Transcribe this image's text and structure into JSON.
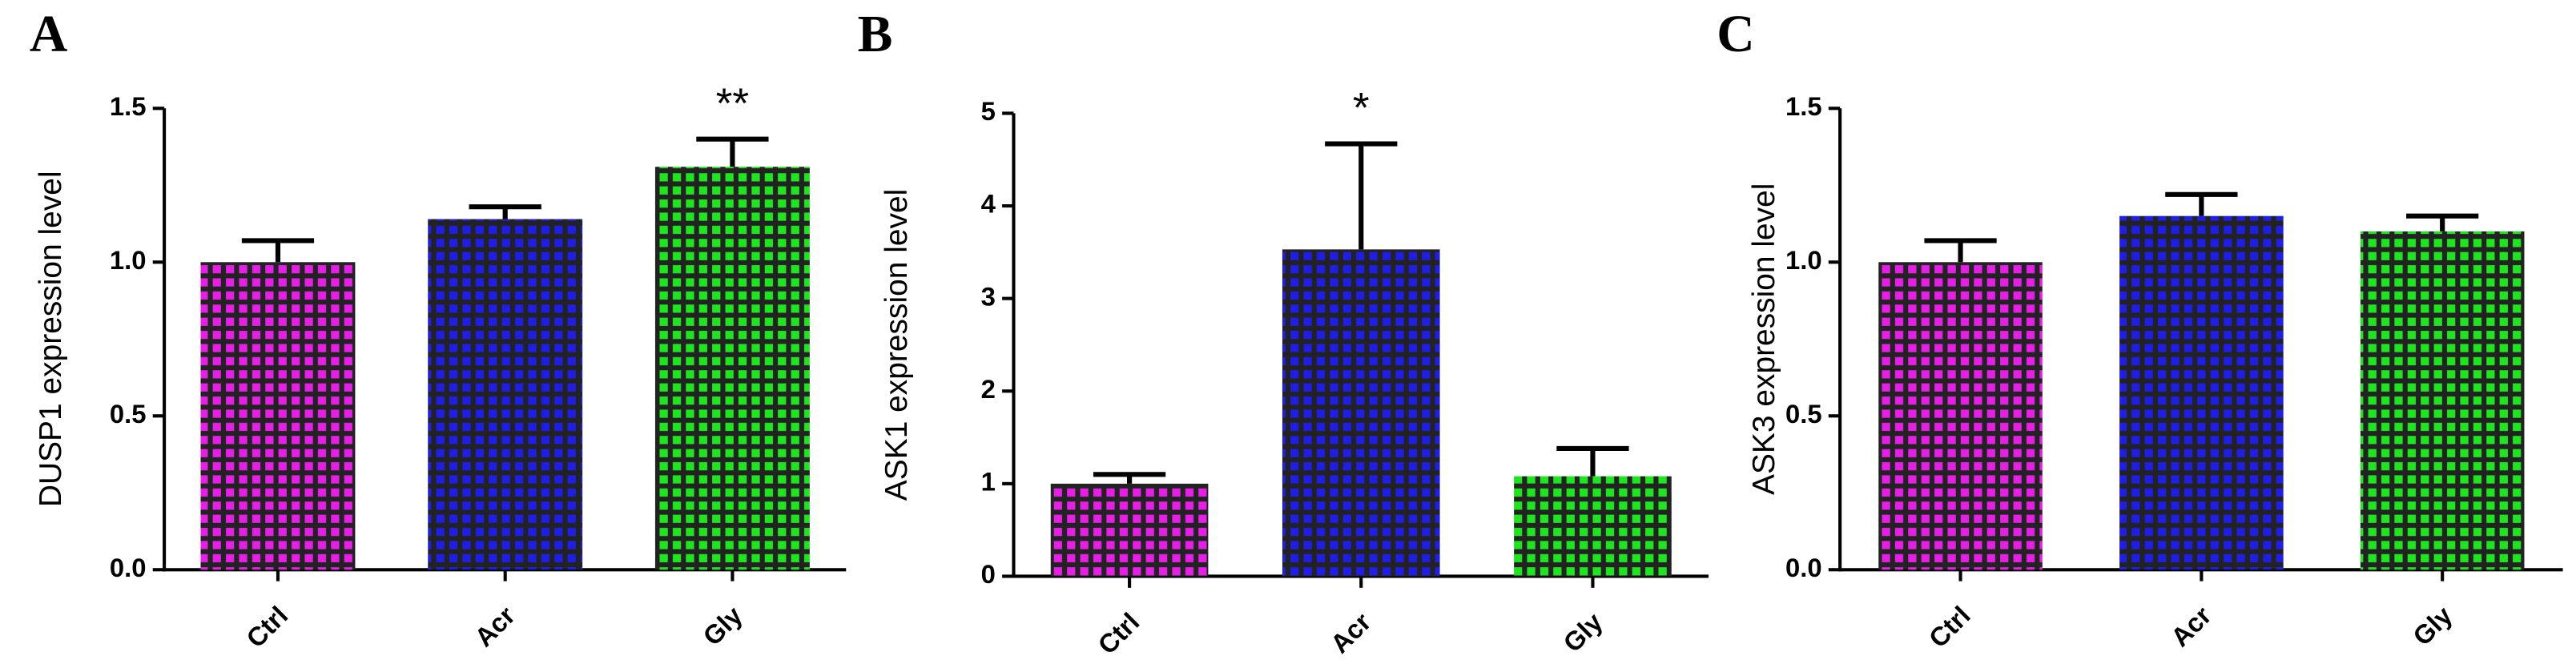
{
  "chart_data": [
    {
      "type": "bar",
      "panel": "A",
      "ylabel": "DUSP1 expression level",
      "categories": [
        "Ctrl",
        "Acr",
        "Gly"
      ],
      "values": [
        1.0,
        1.14,
        1.31
      ],
      "errors": [
        0.07,
        0.04,
        0.09
      ],
      "colors": [
        "#e61ee6",
        "#1e1ee6",
        "#1ee61e"
      ],
      "annotations": [
        null,
        null,
        "**"
      ],
      "ylim": [
        0,
        1.5
      ],
      "yticks": [
        {
          "value": 0,
          "label": "0.0"
        },
        0.5,
        {
          "value": 1,
          "label": "1.0"
        },
        1.5
      ]
    },
    {
      "type": "bar",
      "panel": "B",
      "ylabel": "ASK1 expression level",
      "categories": [
        "Ctrl",
        "Acr",
        "Gly"
      ],
      "values": [
        1.0,
        3.53,
        1.08
      ],
      "errors": [
        0.1,
        1.14,
        0.3
      ],
      "colors": [
        "#e61ee6",
        "#1e1ee6",
        "#1ee61e"
      ],
      "annotations": [
        null,
        "*",
        null
      ],
      "ylim": [
        0,
        5
      ],
      "yticks": [
        0,
        1,
        2,
        3,
        4,
        5
      ]
    },
    {
      "type": "bar",
      "panel": "C",
      "ylabel": "ASK3 expression level",
      "categories": [
        "Ctrl",
        "Acr",
        "Gly"
      ],
      "values": [
        1.0,
        1.15,
        1.1
      ],
      "errors": [
        0.07,
        0.07,
        0.05
      ],
      "colors": [
        "#e61ee6",
        "#1e1ee6",
        "#1ee61e"
      ],
      "annotations": [
        null,
        null,
        null
      ],
      "ylim": [
        0,
        1.5
      ],
      "yticks": [
        {
          "value": 0,
          "label": "0.0"
        },
        0.5,
        {
          "value": 1,
          "label": "1.0"
        },
        1.5
      ]
    }
  ]
}
